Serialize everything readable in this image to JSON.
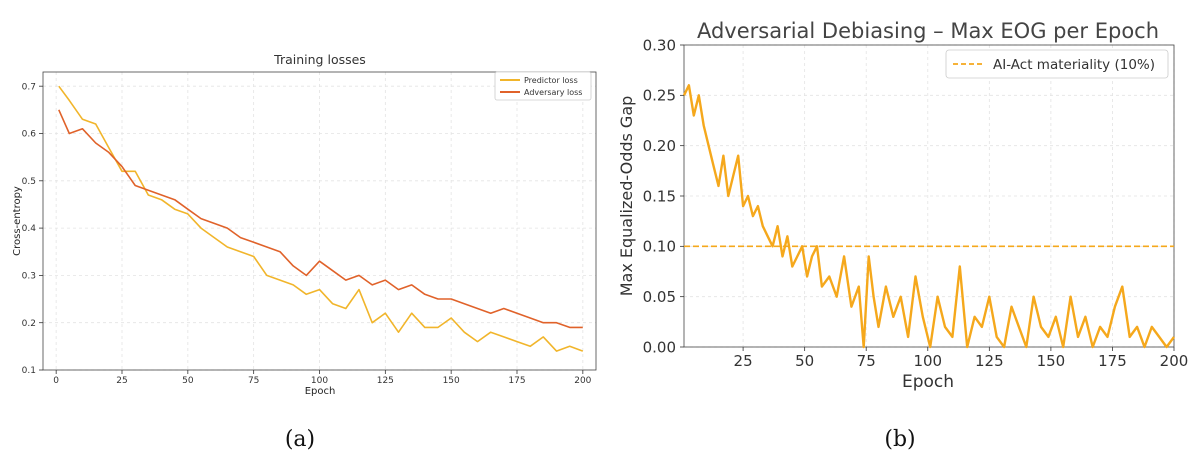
{
  "colors": {
    "predictor": "#f1b52b",
    "adversary": "#e0622a",
    "eog": "#f5a81c",
    "threshold": "#f5a81c",
    "grid": "#e3e3e3",
    "axis": "#333333"
  },
  "captions": {
    "a": "(a)",
    "b": "(b)"
  },
  "chart_data": [
    {
      "type": "line",
      "title": "Training losses",
      "xlabel": "Epoch",
      "ylabel": "Cross-entropy",
      "xlim": [
        -5,
        205
      ],
      "ylim": [
        0.1,
        0.73
      ],
      "xticks": [
        0,
        25,
        50,
        75,
        100,
        125,
        150,
        175,
        200
      ],
      "yticks": [
        0.1,
        0.2,
        0.3,
        0.4,
        0.5,
        0.6,
        0.7
      ],
      "grid": true,
      "legend_position": "top-right",
      "series": [
        {
          "name": "Predictor loss",
          "x": [
            1,
            5,
            10,
            15,
            20,
            25,
            30,
            35,
            40,
            45,
            50,
            55,
            60,
            65,
            70,
            75,
            80,
            85,
            90,
            95,
            100,
            105,
            110,
            115,
            120,
            125,
            130,
            135,
            140,
            145,
            150,
            155,
            160,
            165,
            170,
            175,
            180,
            185,
            190,
            195,
            200
          ],
          "values": [
            0.7,
            0.67,
            0.63,
            0.62,
            0.57,
            0.52,
            0.52,
            0.47,
            0.46,
            0.44,
            0.43,
            0.4,
            0.38,
            0.36,
            0.35,
            0.34,
            0.3,
            0.29,
            0.28,
            0.26,
            0.27,
            0.24,
            0.23,
            0.27,
            0.2,
            0.22,
            0.18,
            0.22,
            0.19,
            0.19,
            0.21,
            0.18,
            0.16,
            0.18,
            0.17,
            0.16,
            0.15,
            0.17,
            0.14,
            0.15,
            0.14
          ]
        },
        {
          "name": "Adversary loss",
          "x": [
            1,
            5,
            10,
            15,
            20,
            25,
            30,
            35,
            40,
            45,
            50,
            55,
            60,
            65,
            70,
            75,
            80,
            85,
            90,
            95,
            100,
            105,
            110,
            115,
            120,
            125,
            130,
            135,
            140,
            145,
            150,
            155,
            160,
            165,
            170,
            175,
            180,
            185,
            190,
            195,
            200
          ],
          "values": [
            0.65,
            0.6,
            0.61,
            0.58,
            0.56,
            0.53,
            0.49,
            0.48,
            0.47,
            0.46,
            0.44,
            0.42,
            0.41,
            0.4,
            0.38,
            0.37,
            0.36,
            0.35,
            0.32,
            0.3,
            0.33,
            0.31,
            0.29,
            0.3,
            0.28,
            0.29,
            0.27,
            0.28,
            0.26,
            0.25,
            0.25,
            0.24,
            0.23,
            0.22,
            0.23,
            0.22,
            0.21,
            0.2,
            0.2,
            0.19,
            0.19
          ]
        }
      ]
    },
    {
      "type": "line",
      "title": "Adversarial Debiasing – Max EOG per Epoch",
      "xlabel": "Epoch",
      "ylabel": "Max Equalized-Odds Gap",
      "xlim": [
        1,
        200
      ],
      "ylim": [
        0,
        0.3
      ],
      "xticks": [
        25,
        50,
        75,
        100,
        125,
        150,
        175,
        200
      ],
      "yticks": [
        0.0,
        0.05,
        0.1,
        0.15,
        0.2,
        0.25,
        0.3
      ],
      "ytick_labels": [
        "0.00",
        "0.05",
        "0.10",
        "0.15",
        "0.20",
        "0.25",
        "0.30"
      ],
      "grid": true,
      "legend_position": "top-right",
      "threshold": {
        "name": "AI-Act materiality (10%)",
        "value": 0.1
      },
      "series": [
        {
          "name": "Max EOG",
          "x": [
            1,
            3,
            5,
            7,
            9,
            11,
            13,
            15,
            17,
            19,
            21,
            23,
            25,
            27,
            29,
            31,
            33,
            35,
            37,
            39,
            41,
            43,
            45,
            47,
            49,
            51,
            53,
            55,
            57,
            60,
            63,
            66,
            69,
            72,
            74,
            76,
            78,
            80,
            83,
            86,
            89,
            92,
            95,
            98,
            101,
            104,
            107,
            110,
            113,
            116,
            119,
            122,
            125,
            128,
            131,
            134,
            137,
            140,
            143,
            146,
            149,
            152,
            155,
            158,
            161,
            164,
            167,
            170,
            173,
            176,
            179,
            182,
            185,
            188,
            191,
            194,
            197,
            200
          ],
          "values": [
            0.25,
            0.26,
            0.23,
            0.25,
            0.22,
            0.2,
            0.18,
            0.16,
            0.19,
            0.15,
            0.17,
            0.19,
            0.14,
            0.15,
            0.13,
            0.14,
            0.12,
            0.11,
            0.1,
            0.12,
            0.09,
            0.11,
            0.08,
            0.09,
            0.1,
            0.07,
            0.09,
            0.1,
            0.06,
            0.07,
            0.05,
            0.09,
            0.04,
            0.06,
            0.0,
            0.09,
            0.05,
            0.02,
            0.06,
            0.03,
            0.05,
            0.01,
            0.07,
            0.03,
            0.0,
            0.05,
            0.02,
            0.01,
            0.08,
            0.0,
            0.03,
            0.02,
            0.05,
            0.01,
            0.0,
            0.04,
            0.02,
            0.0,
            0.05,
            0.02,
            0.01,
            0.03,
            0.0,
            0.05,
            0.01,
            0.03,
            0.0,
            0.02,
            0.01,
            0.04,
            0.06,
            0.01,
            0.02,
            0.0,
            0.02,
            0.01,
            0.0,
            0.01
          ]
        }
      ]
    }
  ]
}
